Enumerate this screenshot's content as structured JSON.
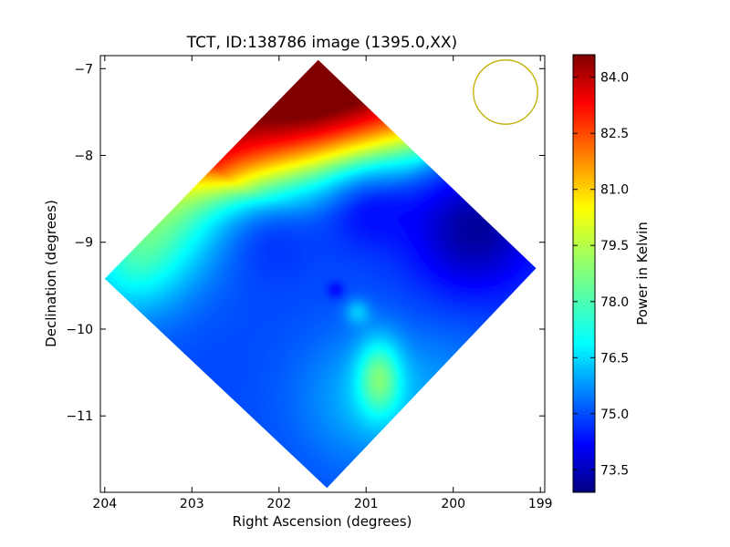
{
  "chart_data": {
    "type": "heatmap",
    "title": "TCT, ID:138786 image (1395.0,XX)",
    "xlabel": "Right Ascension (degrees)",
    "ylabel": "Declination (degrees)",
    "xlim": [
      204.05,
      198.95
    ],
    "ylim": [
      -11.88,
      -6.85
    ],
    "x_ticks": [
      204,
      203,
      202,
      201,
      200,
      199
    ],
    "y_ticks": [
      -7,
      -8,
      -9,
      -10,
      -11
    ],
    "colorbar": {
      "label": "Power in Kelvin",
      "range": [
        72.9,
        84.6
      ],
      "ticks": [
        84.0,
        82.5,
        81.0,
        79.5,
        78.0,
        76.5,
        75.0,
        73.5
      ],
      "colormap": "jet"
    },
    "footprint": {
      "shape": "diamond",
      "vertices": [
        [
          201.55,
          -6.9
        ],
        [
          204.0,
          -9.42
        ],
        [
          201.45,
          -11.83
        ],
        [
          199.05,
          -9.3
        ]
      ]
    },
    "beam_circle": {
      "ra": 199.4,
      "dec": -7.27,
      "radius_deg": 0.37,
      "color": "#bfb000"
    },
    "features": [
      {
        "kind": "max",
        "ra": 201.55,
        "dec": -7.0,
        "value": 84.4
      },
      {
        "kind": "min",
        "ra": 199.75,
        "dec": -8.85,
        "value": 73.0
      },
      {
        "kind": "min",
        "ra": 201.0,
        "dec": -8.55,
        "value": 74.0
      },
      {
        "kind": "min",
        "ra": 202.2,
        "dec": -8.9,
        "value": 74.8
      },
      {
        "kind": "max",
        "ra": 200.85,
        "dec": -10.55,
        "value": 77.7
      },
      {
        "kind": "max",
        "ra": 201.1,
        "dec": -9.85,
        "value": 76.5
      }
    ]
  }
}
